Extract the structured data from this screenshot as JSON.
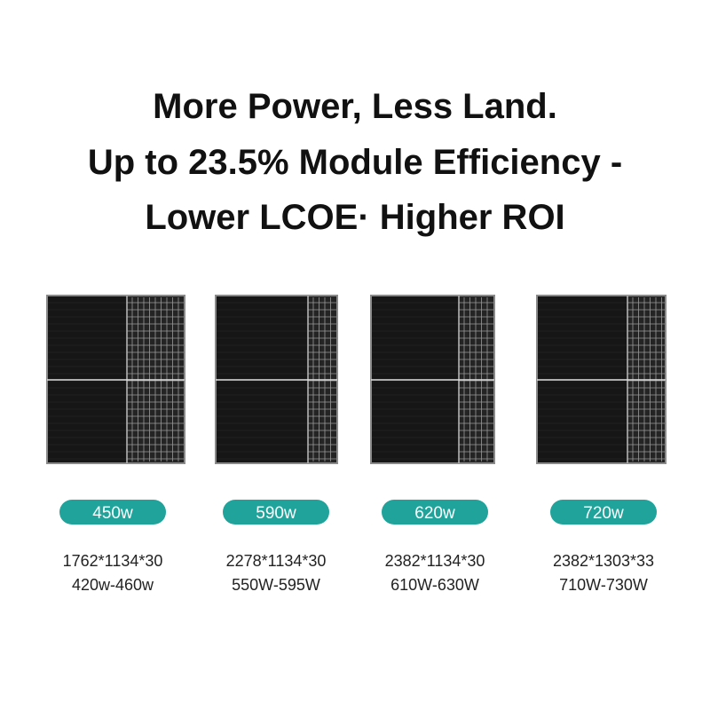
{
  "header": {
    "lines": [
      "More Power, Less Land.",
      "Up to 23.5% Module Efficiency -",
      "Lower LCOE· Higher ROI"
    ]
  },
  "products": [
    {
      "power": "450w",
      "dimensions": "1762*1134*30",
      "range": "420w-460w"
    },
    {
      "power": "590w",
      "dimensions": "2278*1134*30",
      "range": "550W-595W"
    },
    {
      "power": "620w",
      "dimensions": "2382*1134*30",
      "range": "610W-630W"
    },
    {
      "power": "720w",
      "dimensions": "2382*1303*33",
      "range": "710W-730W"
    }
  ]
}
